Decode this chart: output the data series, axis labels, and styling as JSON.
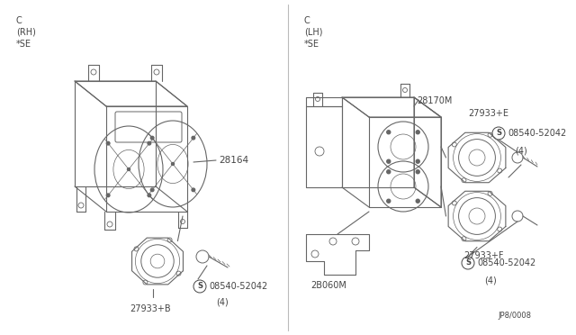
{
  "bg_color": "#ffffff",
  "line_color": "#666666",
  "text_color": "#444444",
  "left_labels": [
    "C",
    "(RH)",
    "*SE"
  ],
  "right_labels": [
    "C",
    "(LH)",
    "*SE"
  ],
  "bottom_code": "JP8/0008"
}
